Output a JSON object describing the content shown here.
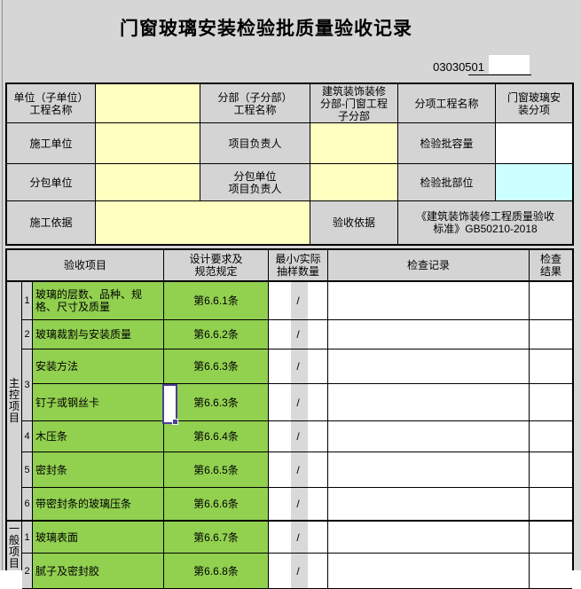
{
  "title": "门窗玻璃安装检验批质量验收记录",
  "form_code": "03030501",
  "colors": {
    "item_green": "#92d050",
    "field_yellow": "#ffffc0",
    "field_cyan": "#ccffff",
    "comment_red": "#c00000",
    "selection_purple": "#4a3f92"
  },
  "info": {
    "unit_project_label": "单位（子单位）\n工程名称",
    "unit_project_value": "",
    "division_label": "分部（子分部）\n工程名称",
    "division_value": "建筑装饰装修\n分部-门窗工程\n子分部",
    "section_label": "分项工程名称",
    "section_value": "门窗玻璃安\n装分项",
    "construction_unit_label": "施工单位",
    "construction_unit_value": "",
    "project_leader_label": "项目负责人",
    "project_leader_value": "",
    "batch_capacity_label": "检验批容量",
    "batch_capacity_value": "",
    "subcontract_unit_label": "分包单位",
    "subcontract_unit_value": "",
    "subcontract_leader_label": "分包单位\n项目负责人",
    "subcontract_leader_value": "",
    "batch_location_label": "检验批部位",
    "batch_location_value": "",
    "construction_basis_label": "施工依据",
    "construction_basis_value": "",
    "acceptance_basis_label": "验收依据",
    "acceptance_basis_value": "《建筑装饰装修工程质量验收\n标准》GB50210-2018"
  },
  "table": {
    "headers": [
      "验收项目",
      "设计要求及\n规范规定",
      "最小/实际\n抽样数量",
      "检查记录",
      "检查\n结果"
    ],
    "sections": [
      {
        "label": "主控项目",
        "rows": [
          {
            "no": "1",
            "item": "玻璃的层数、品种、规\n格、尺寸及质量",
            "spec": "第6.6.1条",
            "sample": "/",
            "record": "",
            "result": ""
          },
          {
            "no": "2",
            "item": "玻璃裁割与安装质量",
            "spec": "第6.6.2条",
            "sample": "/",
            "record": "",
            "result": ""
          },
          {
            "no": "3",
            "item": "安装方法",
            "spec": "第6.6.3条",
            "sample": "/",
            "record": "",
            "result": ""
          },
          {
            "no": "",
            "item": "钉子或钢丝卡",
            "spec": "第6.6.3条",
            "sample": "/",
            "record": "",
            "result": ""
          },
          {
            "no": "4",
            "item": "木压条",
            "spec": "第6.6.4条",
            "sample": "/",
            "record": "",
            "result": ""
          },
          {
            "no": "5",
            "item": "密封条",
            "spec": "第6.6.5条",
            "sample": "/",
            "record": "",
            "result": ""
          },
          {
            "no": "6",
            "item": "带密封条的玻璃压条",
            "spec": "第6.6.6条",
            "sample": "/",
            "record": "",
            "result": ""
          }
        ]
      },
      {
        "label": "一般项目",
        "rows": [
          {
            "no": "1",
            "item": "玻璃表面",
            "spec": "第6.6.7条",
            "sample": "/",
            "record": "",
            "result": ""
          },
          {
            "no": "2",
            "item": "腻子及密封胶",
            "spec": "第6.6.8条",
            "sample": "/",
            "record": "",
            "result": ""
          }
        ]
      }
    ]
  }
}
